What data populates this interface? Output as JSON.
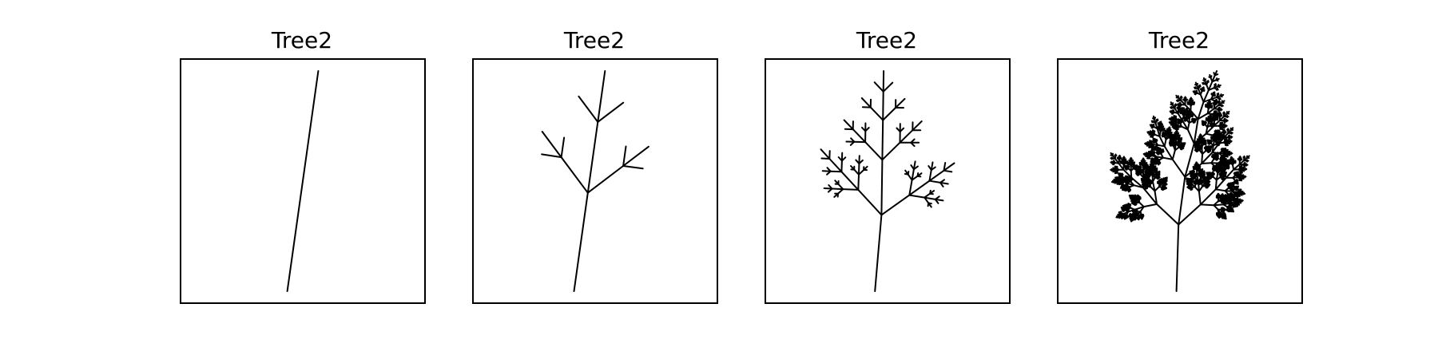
{
  "figure": {
    "panels": [
      {
        "title": "Tree2",
        "depth": 1
      },
      {
        "title": "Tree2",
        "depth": 3
      },
      {
        "title": "Tree2",
        "depth": 5
      },
      {
        "title": "Tree2",
        "depth": 9
      }
    ]
  },
  "colors": {
    "background": "#ffffff",
    "stroke": "#000000"
  }
}
